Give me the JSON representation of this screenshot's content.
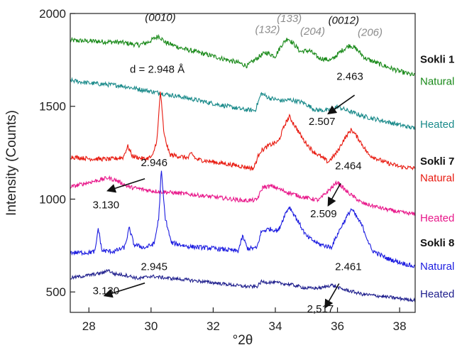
{
  "chart_data": {
    "type": "line",
    "xlabel": "°2θ",
    "ylabel": "Intensity (Counts)",
    "xlim": [
      27.4,
      38.5
    ],
    "ylim": [
      390,
      2000
    ],
    "xticks": [
      "28",
      "30",
      "32",
      "34",
      "36",
      "38"
    ],
    "yticks": [
      "500",
      "1000",
      "1500",
      "2000"
    ],
    "series": [
      {
        "key": "s1n",
        "color": "#1a8a1a",
        "noise": 13,
        "points": [
          [
            27.4,
            1855
          ],
          [
            28.2,
            1850
          ],
          [
            29.0,
            1845
          ],
          [
            29.6,
            1830
          ],
          [
            29.9,
            1845
          ],
          [
            30.1,
            1865
          ],
          [
            30.25,
            1880
          ],
          [
            30.45,
            1845
          ],
          [
            31.0,
            1812
          ],
          [
            32.0,
            1770
          ],
          [
            32.8,
            1735
          ],
          [
            33.1,
            1718
          ],
          [
            33.3,
            1745
          ],
          [
            33.5,
            1770
          ],
          [
            33.7,
            1790
          ],
          [
            34.0,
            1770
          ],
          [
            34.2,
            1830
          ],
          [
            34.4,
            1868
          ],
          [
            34.6,
            1835
          ],
          [
            34.8,
            1795
          ],
          [
            35.1,
            1800
          ],
          [
            35.4,
            1760
          ],
          [
            35.8,
            1748
          ],
          [
            36.1,
            1795
          ],
          [
            36.4,
            1830
          ],
          [
            36.6,
            1810
          ],
          [
            36.9,
            1758
          ],
          [
            37.5,
            1718
          ],
          [
            38.0,
            1688
          ],
          [
            38.5,
            1665
          ]
        ]
      },
      {
        "key": "s1h",
        "color": "#1a8a8a",
        "noise": 12,
        "points": [
          [
            27.4,
            1640
          ],
          [
            28.0,
            1625
          ],
          [
            29.0,
            1612
          ],
          [
            30.0,
            1580
          ],
          [
            31.0,
            1550
          ],
          [
            32.0,
            1515
          ],
          [
            33.0,
            1482
          ],
          [
            33.35,
            1478
          ],
          [
            33.55,
            1570
          ],
          [
            33.8,
            1545
          ],
          [
            34.2,
            1530
          ],
          [
            34.5,
            1535
          ],
          [
            34.9,
            1520
          ],
          [
            35.3,
            1480
          ],
          [
            35.7,
            1478
          ],
          [
            36.0,
            1498
          ],
          [
            36.3,
            1478
          ],
          [
            36.8,
            1448
          ],
          [
            37.5,
            1420
          ],
          [
            38.0,
            1400
          ],
          [
            38.5,
            1380
          ]
        ]
      },
      {
        "key": "s7n",
        "color": "#e8190f",
        "noise": 12,
        "points": [
          [
            27.4,
            1228
          ],
          [
            28.0,
            1218
          ],
          [
            28.7,
            1215
          ],
          [
            29.1,
            1225
          ],
          [
            29.25,
            1285
          ],
          [
            29.4,
            1232
          ],
          [
            29.8,
            1215
          ],
          [
            30.05,
            1230
          ],
          [
            30.2,
            1330
          ],
          [
            30.3,
            1585
          ],
          [
            30.42,
            1345
          ],
          [
            30.6,
            1240
          ],
          [
            31.2,
            1222
          ],
          [
            31.3,
            1248
          ],
          [
            31.45,
            1215
          ],
          [
            32.0,
            1200
          ],
          [
            32.8,
            1180
          ],
          [
            33.3,
            1165
          ],
          [
            33.5,
            1255
          ],
          [
            33.8,
            1290
          ],
          [
            34.1,
            1310
          ],
          [
            34.3,
            1400
          ],
          [
            34.45,
            1445
          ],
          [
            34.65,
            1390
          ],
          [
            34.9,
            1320
          ],
          [
            35.2,
            1260
          ],
          [
            35.7,
            1200
          ],
          [
            36.0,
            1255
          ],
          [
            36.2,
            1320
          ],
          [
            36.45,
            1375
          ],
          [
            36.7,
            1320
          ],
          [
            37.0,
            1240
          ],
          [
            37.5,
            1200
          ],
          [
            38.0,
            1175
          ],
          [
            38.5,
            1165
          ]
        ]
      },
      {
        "key": "s7h",
        "color": "#e8178a",
        "noise": 11,
        "points": [
          [
            27.4,
            1065
          ],
          [
            28.0,
            1090
          ],
          [
            28.4,
            1105
          ],
          [
            28.6,
            1115
          ],
          [
            28.9,
            1100
          ],
          [
            29.3,
            1065
          ],
          [
            30.0,
            1045
          ],
          [
            31.0,
            1030
          ],
          [
            32.0,
            1012
          ],
          [
            33.0,
            992
          ],
          [
            33.4,
            995
          ],
          [
            33.6,
            1065
          ],
          [
            33.9,
            1070
          ],
          [
            34.3,
            1042
          ],
          [
            34.9,
            1010
          ],
          [
            35.4,
            995
          ],
          [
            35.8,
            1060
          ],
          [
            36.0,
            1092
          ],
          [
            36.3,
            1040
          ],
          [
            36.8,
            978
          ],
          [
            37.5,
            948
          ],
          [
            38.0,
            930
          ],
          [
            38.5,
            918
          ]
        ]
      },
      {
        "key": "s8n",
        "color": "#1c1ce0",
        "noise": 12,
        "points": [
          [
            27.4,
            712
          ],
          [
            28.0,
            712
          ],
          [
            28.2,
            718
          ],
          [
            28.3,
            845
          ],
          [
            28.42,
            722
          ],
          [
            28.8,
            718
          ],
          [
            29.15,
            740
          ],
          [
            29.3,
            845
          ],
          [
            29.45,
            755
          ],
          [
            29.8,
            738
          ],
          [
            30.1,
            760
          ],
          [
            30.25,
            900
          ],
          [
            30.33,
            1158
          ],
          [
            30.45,
            905
          ],
          [
            30.65,
            765
          ],
          [
            31.2,
            745
          ],
          [
            32.0,
            735
          ],
          [
            32.8,
            720
          ],
          [
            32.95,
            800
          ],
          [
            33.1,
            735
          ],
          [
            33.4,
            735
          ],
          [
            33.55,
            825
          ],
          [
            33.8,
            840
          ],
          [
            34.1,
            830
          ],
          [
            34.3,
            915
          ],
          [
            34.45,
            960
          ],
          [
            34.7,
            890
          ],
          [
            35.0,
            800
          ],
          [
            35.4,
            758
          ],
          [
            35.8,
            740
          ],
          [
            36.1,
            845
          ],
          [
            36.45,
            948
          ],
          [
            36.8,
            855
          ],
          [
            37.1,
            725
          ],
          [
            37.6,
            680
          ],
          [
            38.0,
            660
          ],
          [
            38.5,
            635
          ]
        ]
      },
      {
        "key": "s8h",
        "color": "#1d1d8c",
        "noise": 9,
        "points": [
          [
            27.4,
            575
          ],
          [
            28.0,
            590
          ],
          [
            28.5,
            605
          ],
          [
            28.6,
            620
          ],
          [
            28.8,
            598
          ],
          [
            29.2,
            590
          ],
          [
            29.6,
            572
          ],
          [
            30.0,
            585
          ],
          [
            30.5,
            575
          ],
          [
            31.0,
            568
          ],
          [
            32.0,
            550
          ],
          [
            33.0,
            530
          ],
          [
            33.4,
            528
          ],
          [
            33.55,
            555
          ],
          [
            34.0,
            550
          ],
          [
            34.5,
            540
          ],
          [
            35.0,
            520
          ],
          [
            35.5,
            522
          ],
          [
            35.8,
            538
          ],
          [
            36.1,
            518
          ],
          [
            36.8,
            488
          ],
          [
            37.5,
            475
          ],
          [
            38.0,
            465
          ],
          [
            38.5,
            455
          ]
        ]
      }
    ],
    "peak_labels": [
      {
        "key": "p0010",
        "text": "(0010)",
        "color": "#111111",
        "x": 30.3,
        "y": 1960
      },
      {
        "key": "p132",
        "text": "(132)",
        "color": "#8c8c8c",
        "x": 33.75,
        "y": 1895
      },
      {
        "key": "p133",
        "text": "(133)",
        "color": "#8c8c8c",
        "x": 34.45,
        "y": 1955
      },
      {
        "key": "p204",
        "text": "(204)",
        "color": "#8c8c8c",
        "x": 35.2,
        "y": 1885
      },
      {
        "key": "p0012",
        "text": "(0012)",
        "color": "#111111",
        "x": 36.2,
        "y": 1945
      },
      {
        "key": "p206",
        "text": "(206)",
        "color": "#8c8c8c",
        "x": 37.05,
        "y": 1880
      }
    ],
    "annotations": [
      {
        "key": "a1",
        "text": "d = 2.948 Å",
        "x": 30.2,
        "y": 1680
      },
      {
        "key": "a2",
        "text": "2.463",
        "x": 36.4,
        "y": 1642
      },
      {
        "key": "a3",
        "text": "2.507",
        "x": 35.5,
        "y": 1400
      },
      {
        "key": "a4",
        "text": "2.946",
        "x": 30.1,
        "y": 1178
      },
      {
        "key": "a5",
        "text": "3.130",
        "x": 28.55,
        "y": 950
      },
      {
        "key": "a6",
        "text": "2.464",
        "x": 36.35,
        "y": 1160
      },
      {
        "key": "a7",
        "text": "2.509",
        "x": 35.55,
        "y": 902
      },
      {
        "key": "a8",
        "text": "2.945",
        "x": 30.1,
        "y": 617
      },
      {
        "key": "a9",
        "text": "3.130",
        "x": 28.55,
        "y": 487
      },
      {
        "key": "a10",
        "text": "2.461",
        "x": 36.35,
        "y": 617
      },
      {
        "key": "a11",
        "text": "2,517",
        "x": 35.45,
        "y": 390
      }
    ],
    "arrows": [
      {
        "key": "ar1",
        "from": [
          36.55,
          1560
        ],
        "to": [
          35.7,
          1460
        ]
      },
      {
        "key": "ar2",
        "from": [
          29.8,
          1110
        ],
        "to": [
          28.6,
          1045
        ]
      },
      {
        "key": "ar3",
        "from": [
          36.1,
          1085
        ],
        "to": [
          35.7,
          965
        ]
      },
      {
        "key": "ar4",
        "from": [
          29.8,
          548
        ],
        "to": [
          28.5,
          480
        ]
      },
      {
        "key": "ar5",
        "from": [
          36.05,
          545
        ],
        "to": [
          35.6,
          415
        ]
      }
    ],
    "sample_labels": [
      {
        "key": "l1",
        "text": "Sokli 1",
        "color": "#111111",
        "bold": true,
        "y": 1735
      },
      {
        "key": "l2",
        "text": "Natural",
        "color": "#1a8a1a",
        "bold": false,
        "y": 1615
      },
      {
        "key": "l3",
        "text": "Heated",
        "color": "#1a8a8a",
        "bold": false,
        "y": 1385
      },
      {
        "key": "l4",
        "text": "Sokli 7",
        "color": "#111111",
        "bold": true,
        "y": 1185
      },
      {
        "key": "l5",
        "text": "Natural",
        "color": "#e8190f",
        "bold": false,
        "y": 1095
      },
      {
        "key": "l6",
        "text": "Heated",
        "color": "#e8178a",
        "bold": false,
        "y": 880
      },
      {
        "key": "l7",
        "text": "Sokli 8",
        "color": "#111111",
        "bold": true,
        "y": 745
      },
      {
        "key": "l8",
        "text": "Natural",
        "color": "#1c1ce0",
        "bold": false,
        "y": 620
      },
      {
        "key": "l9",
        "text": "Heated",
        "color": "#1d1d8c",
        "bold": false,
        "y": 470
      }
    ]
  }
}
